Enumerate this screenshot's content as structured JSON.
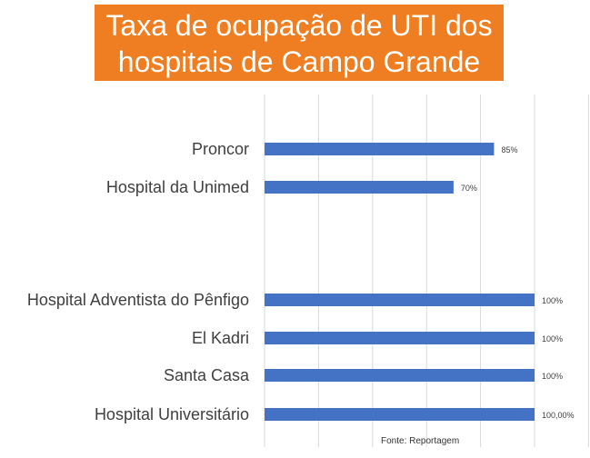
{
  "title_lines": [
    "Taxa de ocupação de UTI dos",
    "hospitais de Campo Grande"
  ],
  "source": "Fonte: Reportagem",
  "colors": {
    "bar": "#4472c4",
    "title_bg": "#ef7d22",
    "title_text": "#ffffff",
    "grid": "#d9d9d9",
    "label": "#404040"
  },
  "chart_data": {
    "type": "bar",
    "orientation": "horizontal",
    "title": "Taxa de ocupação de UTI dos hospitais de Campo Grande",
    "categories": [
      "Proncor",
      "Hospital da Unimed",
      "Hospital Adventista do Pênfigo",
      "El Kadri",
      "Santa Casa",
      "Hospital Universitário"
    ],
    "values": [
      85,
      70,
      100,
      100,
      100,
      100
    ],
    "data_labels": [
      "85%",
      "70%",
      "100%",
      "100%",
      "100%",
      "100,00%"
    ],
    "xlim": [
      0,
      100
    ],
    "grid": true,
    "axis_ticks_shown": false,
    "legend": "none"
  }
}
